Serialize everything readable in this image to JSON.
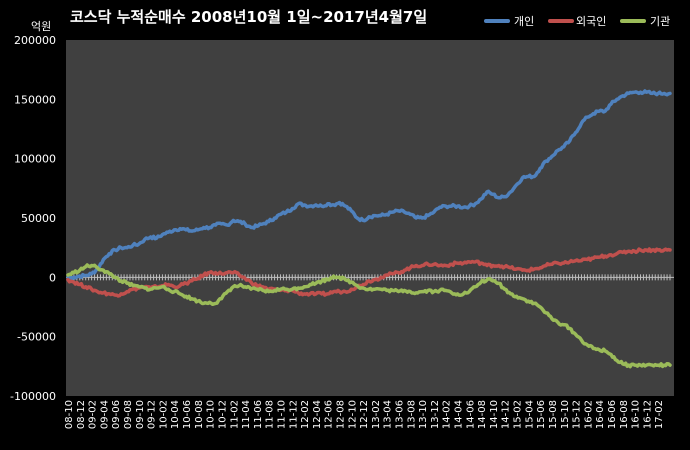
{
  "chart_data": {
    "type": "line",
    "title": "코스닥 누적순매수 2008년10월 1일~2017년4월7일",
    "unit_label": "억원",
    "ylim": [
      -100000,
      200000
    ],
    "y_ticks": [
      200000,
      150000,
      100000,
      50000,
      0,
      -50000,
      -100000
    ],
    "grid": false,
    "legend_position": "top-right",
    "x_categories": [
      "08-10",
      "08-12",
      "09-02",
      "09-04",
      "09-06",
      "09-08",
      "09-10",
      "09-12",
      "10-02",
      "10-04",
      "10-06",
      "10-08",
      "10-10",
      "10-12",
      "11-02",
      "11-04",
      "11-06",
      "11-08",
      "11-10",
      "11-12",
      "12-02",
      "12-04",
      "12-06",
      "12-08",
      "12-10",
      "12-12",
      "13-02",
      "13-04",
      "13-06",
      "13-08",
      "13-10",
      "13-12",
      "14-02",
      "14-04",
      "14-06",
      "14-08",
      "14-10",
      "14-12",
      "15-02",
      "15-04",
      "15-06",
      "15-08",
      "15-10",
      "15-12",
      "16-02",
      "16-04",
      "16-06",
      "16-08",
      "16-10",
      "16-12",
      "17-02"
    ],
    "x": [
      "08-10",
      "08-11",
      "08-12",
      "09-01",
      "09-02",
      "09-03",
      "09-04",
      "09-05",
      "09-06",
      "09-07",
      "09-08",
      "09-09",
      "09-10",
      "09-11",
      "09-12",
      "10-01",
      "10-02",
      "10-03",
      "10-04",
      "10-05",
      "10-06",
      "10-07",
      "10-08",
      "10-09",
      "10-10",
      "10-11",
      "10-12",
      "11-01",
      "11-02",
      "11-03",
      "11-04",
      "11-05",
      "11-06",
      "11-07",
      "11-08",
      "11-09",
      "11-10",
      "11-11",
      "11-12",
      "12-01",
      "12-02",
      "12-03",
      "12-04",
      "12-05",
      "12-06",
      "12-07",
      "12-08",
      "12-09",
      "12-10",
      "12-11",
      "12-12",
      "13-01",
      "13-02",
      "13-03",
      "13-04",
      "13-05",
      "13-06",
      "13-07",
      "13-08",
      "13-09",
      "13-10",
      "13-11",
      "13-12",
      "14-01",
      "14-02",
      "14-03",
      "14-04",
      "14-05",
      "14-06",
      "14-07",
      "14-08",
      "14-09",
      "14-10",
      "14-11",
      "14-12",
      "15-01",
      "15-02",
      "15-03",
      "15-04",
      "15-05",
      "15-06",
      "15-07",
      "15-08",
      "15-09",
      "15-10",
      "15-11",
      "15-12",
      "16-01",
      "16-02",
      "16-03",
      "16-04",
      "16-05",
      "16-06",
      "16-07",
      "16-08",
      "16-09",
      "16-10",
      "16-11",
      "16-12",
      "17-01",
      "17-02",
      "17-03",
      "17-04"
    ],
    "series": [
      {
        "name": "개인",
        "color": "#4F81BD",
        "values": [
          0,
          0,
          1000,
          1500,
          3000,
          7000,
          15000,
          20000,
          23000,
          25000,
          25000,
          27000,
          28000,
          32000,
          34000,
          33000,
          36000,
          38000,
          40000,
          41000,
          40000,
          39000,
          40000,
          42000,
          42000,
          44000,
          45000,
          44000,
          48000,
          47000,
          45000,
          42000,
          43000,
          45000,
          47000,
          50000,
          53000,
          55000,
          58000,
          62000,
          61000,
          60000,
          61000,
          60000,
          62000,
          61000,
          63000,
          60000,
          56000,
          50000,
          48000,
          51000,
          52000,
          52000,
          53000,
          55000,
          56000,
          55000,
          53000,
          50000,
          50000,
          52000,
          55000,
          59000,
          60000,
          60000,
          60000,
          59000,
          60000,
          62000,
          66000,
          72000,
          70000,
          67000,
          68000,
          72000,
          78000,
          84000,
          85000,
          85000,
          92000,
          98000,
          102000,
          107000,
          110000,
          115000,
          122000,
          130000,
          135000,
          138000,
          140000,
          140000,
          146000,
          150000,
          153000,
          155000,
          156000,
          156000,
          156000,
          155000,
          155000,
          155000,
          155000
        ]
      },
      {
        "name": "외국인",
        "color": "#C0504D",
        "values": [
          -2000,
          -4000,
          -6000,
          -8000,
          -10000,
          -12000,
          -13000,
          -14000,
          -15000,
          -14000,
          -12000,
          -10000,
          -9000,
          -8000,
          -9000,
          -8000,
          -7000,
          -6000,
          -8000,
          -7000,
          -5000,
          -3000,
          -1000,
          2000,
          4000,
          4000,
          3000,
          4000,
          4000,
          2000,
          -1000,
          -4000,
          -7000,
          -8000,
          -10000,
          -10000,
          -11000,
          -11000,
          -11000,
          -13000,
          -14000,
          -14000,
          -14000,
          -14000,
          -14000,
          -12000,
          -12000,
          -12000,
          -10000,
          -8000,
          -6000,
          -3000,
          -2000,
          0,
          2000,
          3000,
          4000,
          6000,
          8000,
          10000,
          10000,
          11000,
          11000,
          10000,
          10000,
          11000,
          12000,
          12000,
          13000,
          13000,
          12000,
          10000,
          10000,
          10000,
          9000,
          8000,
          7000,
          6000,
          6000,
          7000,
          8000,
          10000,
          11000,
          12000,
          12000,
          13000,
          14000,
          14000,
          15000,
          16000,
          17000,
          18000,
          19000,
          20000,
          21000,
          22000,
          22000,
          23000,
          23000,
          23000,
          23000,
          23000,
          23000
        ]
      },
      {
        "name": "기관",
        "color": "#9BBB59",
        "values": [
          2000,
          4000,
          6000,
          9000,
          10000,
          8000,
          6000,
          3000,
          0,
          -3000,
          -5000,
          -7000,
          -8000,
          -9000,
          -10000,
          -9000,
          -8000,
          -10000,
          -12000,
          -14000,
          -16000,
          -18000,
          -20000,
          -22000,
          -21000,
          -22000,
          -18000,
          -12000,
          -8000,
          -7000,
          -8000,
          -10000,
          -10000,
          -11000,
          -12000,
          -11000,
          -10000,
          -10000,
          -10000,
          -9000,
          -8000,
          -6000,
          -5000,
          -3000,
          -2000,
          1000,
          0,
          -2000,
          -4000,
          -7000,
          -9000,
          -10000,
          -10000,
          -10000,
          -11000,
          -11000,
          -12000,
          -11000,
          -12000,
          -13000,
          -12000,
          -11000,
          -12000,
          -11000,
          -11000,
          -13000,
          -14000,
          -14000,
          -12000,
          -8000,
          -4000,
          -2000,
          -3000,
          -5000,
          -10000,
          -14000,
          -16000,
          -18000,
          -20000,
          -22000,
          -25000,
          -30000,
          -35000,
          -38000,
          -40000,
          -43000,
          -48000,
          -53000,
          -57000,
          -60000,
          -61000,
          -62000,
          -65000,
          -70000,
          -73000,
          -74000,
          -74000,
          -74000,
          -74000,
          -74000,
          -74000,
          -74000,
          -74000
        ]
      }
    ]
  }
}
